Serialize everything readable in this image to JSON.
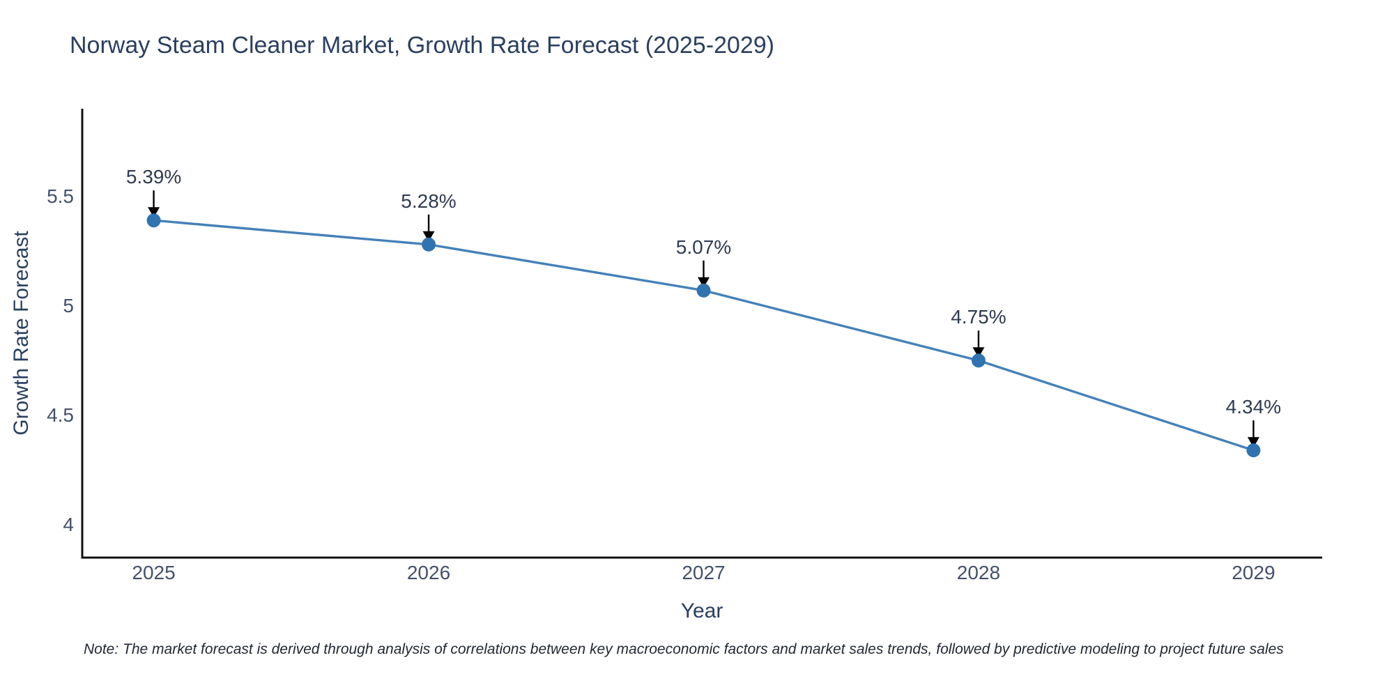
{
  "page": {
    "background": "#ffffff"
  },
  "chart_data": {
    "type": "line",
    "title": "Norway Steam Cleaner Market, Growth Rate Forecast (2025-2029)",
    "xlabel": "Year",
    "ylabel": "Growth Rate Forecast",
    "x": [
      2025,
      2026,
      2027,
      2028,
      2029
    ],
    "series": [
      {
        "name": "Growth Rate Forecast",
        "values": [
          5.39,
          5.28,
          5.07,
          4.75,
          4.34
        ]
      }
    ],
    "point_labels": [
      "5.39%",
      "5.28%",
      "5.07%",
      "4.75%",
      "4.34%"
    ],
    "x_ticks": [
      2025,
      2026,
      2027,
      2028,
      2029
    ],
    "x_tick_labels": [
      "2025",
      "2026",
      "2027",
      "2028",
      "2029"
    ],
    "y_ticks": [
      4,
      4.5,
      5,
      5.5
    ],
    "y_tick_labels": [
      "4",
      "4.5",
      "5",
      "5.5"
    ],
    "x_range": [
      2024.74,
      2029.25
    ],
    "y_range": [
      3.85,
      5.9
    ],
    "grid": false,
    "legend": "none",
    "marker_style": "circle",
    "annotation_arrows": true,
    "colors": {
      "line": "#4681b8",
      "marker": "#3173ae",
      "axis": "#111111",
      "title_text": "#2a3f5f",
      "tick_text": "#44506b",
      "annotation_text": "#2f3a50",
      "arrow": "#000000"
    }
  },
  "footnote": "Note: The market forecast is derived through analysis of correlations between key macroeconomic factors and market sales trends, followed by predictive modeling to project future sales"
}
